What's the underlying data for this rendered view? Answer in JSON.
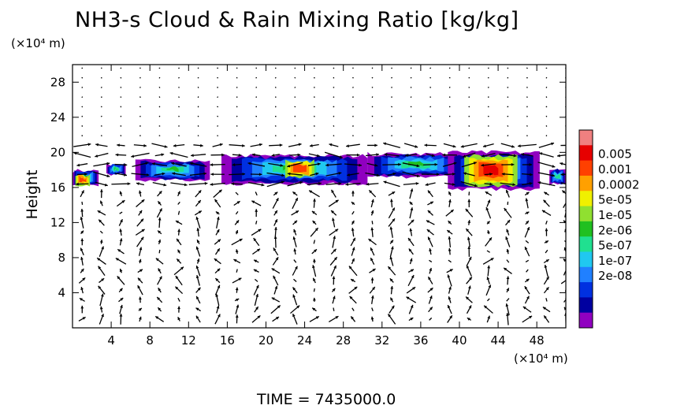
{
  "title": "NH3-s Cloud & Rain Mixing Ratio [kg/kg]",
  "time_label": "TIME  =  7435000.0",
  "chart_data": {
    "type": "heatmap",
    "title": "NH3-s Cloud & Rain Mixing Ratio [kg/kg]",
    "xlabel": "",
    "x_unit": "(×10⁴ m)",
    "ylabel": "Height",
    "y_unit": "(×10⁴ m)",
    "xlim": [
      0,
      51
    ],
    "ylim": [
      0,
      30
    ],
    "x_ticks": [
      4,
      8,
      12,
      16,
      20,
      24,
      28,
      32,
      36,
      40,
      44,
      48
    ],
    "y_ticks": [
      4,
      8,
      12,
      16,
      20,
      24,
      28
    ],
    "legend_levels": [
      "0.005",
      "0.001",
      "0.0002",
      "5e-05",
      "1e-05",
      "2e-06",
      "5e-07",
      "1e-07",
      "2e-08"
    ],
    "legend_colors": [
      "#f08080",
      "#e60000",
      "#ff4000",
      "#ffa000",
      "#f0f000",
      "#90e030",
      "#20c020",
      "#20e090",
      "#20c8f0",
      "#2080ff",
      "#0030e0",
      "#0000a0",
      "#9000c0"
    ],
    "has_wind_vectors": true,
    "cloud_layer": {
      "base_height": 16,
      "top_height": 20,
      "max_regions": [
        {
          "x": 1,
          "y": 16.8,
          "level": "0.0002"
        },
        {
          "x": 23,
          "y": 18,
          "level": "0.0002"
        },
        {
          "x": 43,
          "y": 17.5,
          "level": "0.001"
        }
      ]
    }
  }
}
